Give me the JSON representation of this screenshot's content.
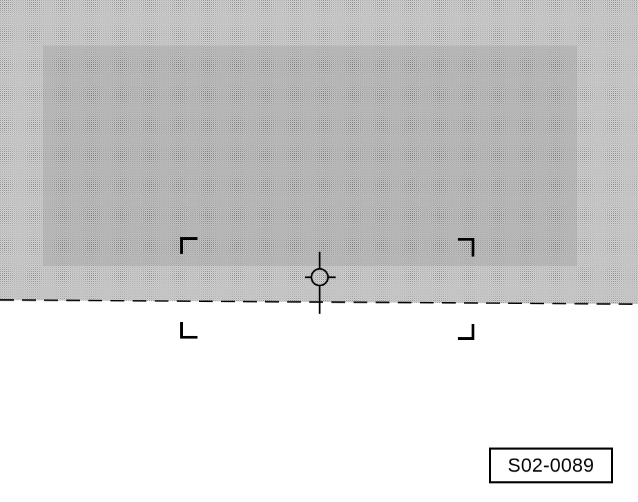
{
  "figure": {
    "label": "S02-0089",
    "colors": {
      "outer_region": "#bdbdbd",
      "inner_region": "#b0b0b0",
      "ink": "#000000",
      "paper": "#ffffff"
    },
    "icons": [
      "crosshair-icon",
      "viewfinder-corner-icon"
    ]
  }
}
